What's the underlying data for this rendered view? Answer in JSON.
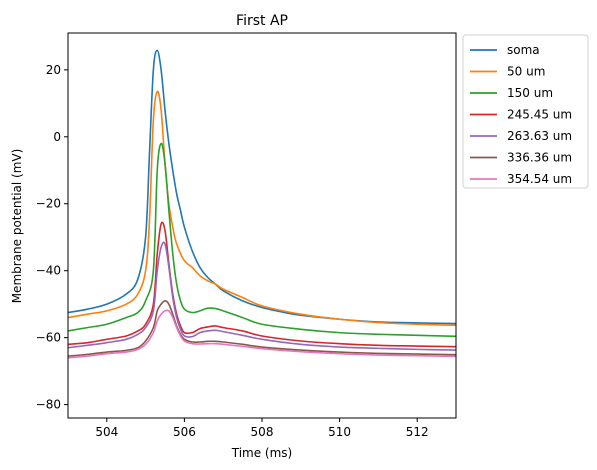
{
  "chart_data": {
    "type": "line",
    "title": "First AP",
    "xlabel": "Time (ms)",
    "ylabel": "Membrane potential (mV)",
    "xlim": [
      503.0,
      513.0
    ],
    "ylim": [
      -84,
      31
    ],
    "xticks": [
      504,
      506,
      508,
      510,
      512
    ],
    "yticks": [
      -80,
      -60,
      -40,
      -20,
      0,
      20
    ],
    "grid": false,
    "legend_position": "outside-top-right",
    "series": [
      {
        "name": "soma",
        "color": "#1f77b4",
        "x": [
          503.0,
          503.5,
          504.0,
          504.5,
          504.8,
          505.0,
          505.1,
          505.2,
          505.3,
          505.4,
          505.5,
          505.6,
          505.7,
          505.8,
          505.9,
          506.0,
          506.2,
          506.4,
          506.6,
          506.8,
          507.0,
          507.5,
          508.0,
          508.5,
          509.0,
          510.0,
          511.0,
          512.0,
          513.0
        ],
        "y": [
          -52.5,
          -51.5,
          -50,
          -47,
          -42.5,
          -30,
          -5,
          20,
          25.8,
          20,
          8,
          -2,
          -10,
          -17,
          -22,
          -27,
          -34,
          -39,
          -42,
          -44,
          -46,
          -49,
          -51,
          -52.3,
          -53.3,
          -54.5,
          -55.3,
          -55.6,
          -55.8
        ]
      },
      {
        "name": "50 um",
        "color": "#ff7f0e",
        "x": [
          503.0,
          503.5,
          504.0,
          504.5,
          504.8,
          505.0,
          505.1,
          505.2,
          505.3,
          505.4,
          505.5,
          505.6,
          505.7,
          505.8,
          506.0,
          506.2,
          506.4,
          506.6,
          506.8,
          507.0,
          507.5,
          508.0,
          509.0,
          510.0,
          511.0,
          512.0,
          513.0
        ],
        "y": [
          -54,
          -53,
          -52,
          -50,
          -47,
          -40,
          -25,
          5,
          13.5,
          8,
          -8,
          -20,
          -27,
          -32,
          -37,
          -39,
          -41.5,
          -43,
          -44,
          -45.5,
          -48,
          -50.5,
          -53,
          -54.5,
          -55.5,
          -56,
          -56.3
        ]
      },
      {
        "name": "150 um",
        "color": "#2ca02c",
        "x": [
          503.0,
          503.5,
          504.0,
          504.5,
          504.8,
          505.0,
          505.2,
          505.3,
          505.4,
          505.5,
          505.6,
          505.7,
          505.8,
          505.9,
          506.0,
          506.2,
          506.4,
          506.6,
          506.8,
          507.0,
          507.5,
          508.0,
          509.0,
          510.0,
          511.0,
          512.0,
          513.0
        ],
        "y": [
          -58,
          -57,
          -56,
          -54,
          -52.5,
          -49,
          -40,
          -10,
          -2,
          -8,
          -22,
          -35,
          -44,
          -49,
          -51.5,
          -52.5,
          -52,
          -51.2,
          -51.3,
          -52,
          -54,
          -56,
          -57.5,
          -58.5,
          -59,
          -59.3,
          -59.6
        ]
      },
      {
        "name": "245.45 um",
        "color": "#d62728",
        "x": [
          503.0,
          503.5,
          504.0,
          504.5,
          504.8,
          505.0,
          505.2,
          505.3,
          505.4,
          505.5,
          505.6,
          505.7,
          505.8,
          505.9,
          506.0,
          506.2,
          506.4,
          506.6,
          506.8,
          507.0,
          507.5,
          508.0,
          509.0,
          510.0,
          511.0,
          512.0,
          513.0
        ],
        "y": [
          -62,
          -61.5,
          -60.5,
          -59.5,
          -58,
          -56,
          -50,
          -35,
          -26,
          -28,
          -38,
          -47,
          -53,
          -56.5,
          -58.5,
          -58.5,
          -57.3,
          -56.8,
          -56.5,
          -57,
          -58,
          -59.5,
          -61,
          -61.8,
          -62.3,
          -62.5,
          -62.7
        ]
      },
      {
        "name": "263.63 um",
        "color": "#9467bd",
        "x": [
          503.0,
          503.5,
          504.0,
          504.5,
          504.8,
          505.0,
          505.2,
          505.3,
          505.4,
          505.5,
          505.6,
          505.7,
          505.8,
          505.9,
          506.0,
          506.2,
          506.4,
          506.6,
          506.8,
          507.0,
          507.5,
          508.0,
          509.0,
          510.0,
          511.0,
          512.0,
          513.0
        ],
        "y": [
          -63,
          -62.3,
          -61.5,
          -60.5,
          -59,
          -57,
          -52,
          -40,
          -33,
          -32,
          -39,
          -48,
          -54,
          -57.5,
          -59.5,
          -59.7,
          -58.5,
          -58,
          -57.8,
          -58.2,
          -59.3,
          -60.5,
          -62,
          -62.8,
          -63.2,
          -63.5,
          -63.7
        ]
      },
      {
        "name": "336.36 um",
        "color": "#8c564b",
        "x": [
          503.0,
          503.5,
          504.0,
          504.5,
          504.8,
          505.0,
          505.2,
          505.3,
          505.4,
          505.5,
          505.6,
          505.7,
          505.8,
          505.9,
          506.0,
          506.2,
          506.4,
          506.6,
          506.8,
          507.0,
          507.5,
          508.0,
          509.0,
          510.0,
          511.0,
          512.0,
          513.0
        ],
        "y": [
          -65.5,
          -65,
          -64.3,
          -63.8,
          -63,
          -61,
          -57,
          -52,
          -50,
          -49,
          -50,
          -53,
          -56.5,
          -59,
          -60.5,
          -61.3,
          -61.3,
          -61.1,
          -61.1,
          -61.3,
          -62,
          -62.8,
          -63.7,
          -64.3,
          -64.7,
          -64.9,
          -65.1
        ]
      },
      {
        "name": "354.54 um",
        "color": "#e377c2",
        "x": [
          503.0,
          503.5,
          504.0,
          504.5,
          504.8,
          505.0,
          505.2,
          505.3,
          505.4,
          505.5,
          505.6,
          505.7,
          505.8,
          505.9,
          506.0,
          506.2,
          506.4,
          506.6,
          506.8,
          507.0,
          507.5,
          508.0,
          509.0,
          510.0,
          511.0,
          512.0,
          513.0
        ],
        "y": [
          -66,
          -65.5,
          -64.8,
          -64.3,
          -63.5,
          -62,
          -58.5,
          -55,
          -53,
          -52,
          -52,
          -54,
          -57,
          -59.5,
          -61,
          -61.8,
          -61.9,
          -61.8,
          -61.8,
          -62,
          -62.6,
          -63.3,
          -64.2,
          -64.8,
          -65.2,
          -65.4,
          -65.6
        ]
      }
    ]
  }
}
